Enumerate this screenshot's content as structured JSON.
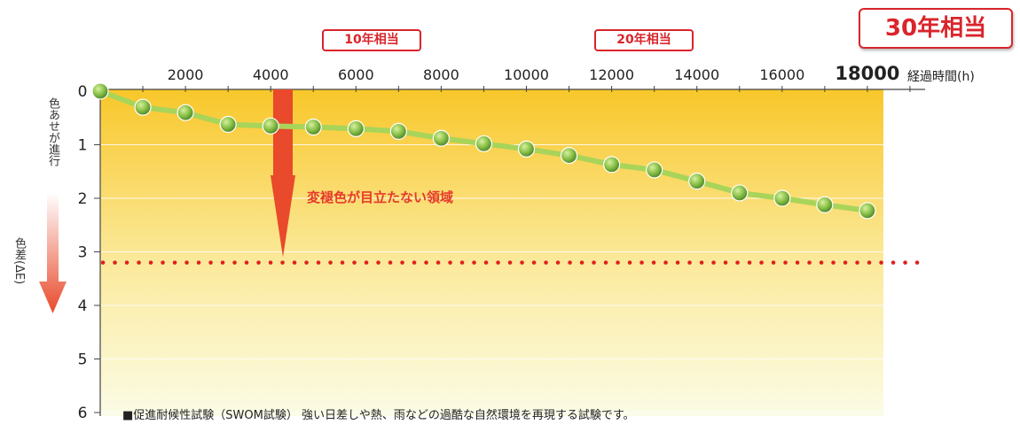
{
  "chart_data": {
    "type": "line",
    "x": [
      0,
      1000,
      2000,
      3000,
      4000,
      5000,
      6000,
      7000,
      8000,
      9000,
      10000,
      11000,
      12000,
      13000,
      14000,
      15000,
      16000,
      17000,
      18000
    ],
    "series": [
      {
        "values": [
          0,
          0.3,
          0.4,
          0.62,
          0.65,
          0.67,
          0.7,
          0.75,
          0.88,
          0.98,
          1.08,
          1.2,
          1.37,
          1.47,
          1.68,
          1.9,
          2.0,
          2.12,
          2.23
        ]
      }
    ],
    "x_ticks": [
      "2000",
      "4000",
      "6000",
      "8000",
      "10000",
      "12000",
      "14000",
      "16000",
      "18000"
    ],
    "y_ticks": [
      "0",
      "1",
      "2",
      "3",
      "4",
      "5",
      "6"
    ],
    "xlim": [
      0,
      19500
    ],
    "ylim": [
      0,
      6
    ],
    "xlabel": "経過時間(h)",
    "ylabel": "色差(ΔE)",
    "y_direction_label": "色あせが進行",
    "threshold": {
      "value": 3.2,
      "label": "変褪色が目立たない領域"
    },
    "markers": [
      {
        "label": "10年相当"
      },
      {
        "label": "20年相当"
      },
      {
        "label": "30年相当"
      }
    ],
    "footnote": "■促進耐候性試験（SWOM試験） 強い日差しや熱、雨などの過酷な自然環境を再現する試験です。",
    "colors": {
      "line": "#a8d45a",
      "marker": "#6aa53a",
      "threshold": "#e02020",
      "arrow": "#e84a2b",
      "bg_top": "#f8c72a",
      "bg_bottom": "#fbfce6",
      "accent": "#d9252b"
    },
    "grid": true
  }
}
